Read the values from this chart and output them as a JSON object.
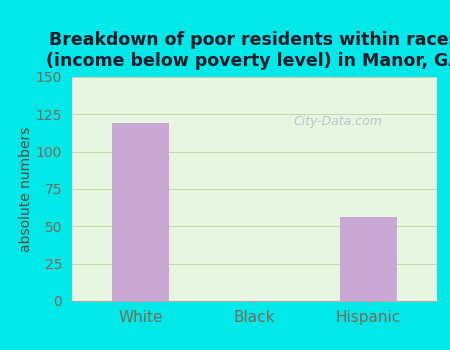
{
  "categories": [
    "White",
    "Black",
    "Hispanic"
  ],
  "values": [
    119,
    0,
    56
  ],
  "bar_color": "#c9a8d4",
  "title": "Breakdown of poor residents within races\n(income below poverty level) in Manor, GA",
  "ylabel": "absolute numbers",
  "ylim": [
    0,
    150
  ],
  "yticks": [
    0,
    25,
    50,
    75,
    100,
    125,
    150
  ],
  "background_outer": "#00e8e8",
  "background_plot": "#e8f5e0",
  "title_fontsize": 12.5,
  "axis_label_color": "#5a4a3a",
  "tick_label_color": "#7a6a5a",
  "grid_color": "#c8d8b0",
  "watermark": "City-Data.com",
  "title_color": "#1a1a2a"
}
